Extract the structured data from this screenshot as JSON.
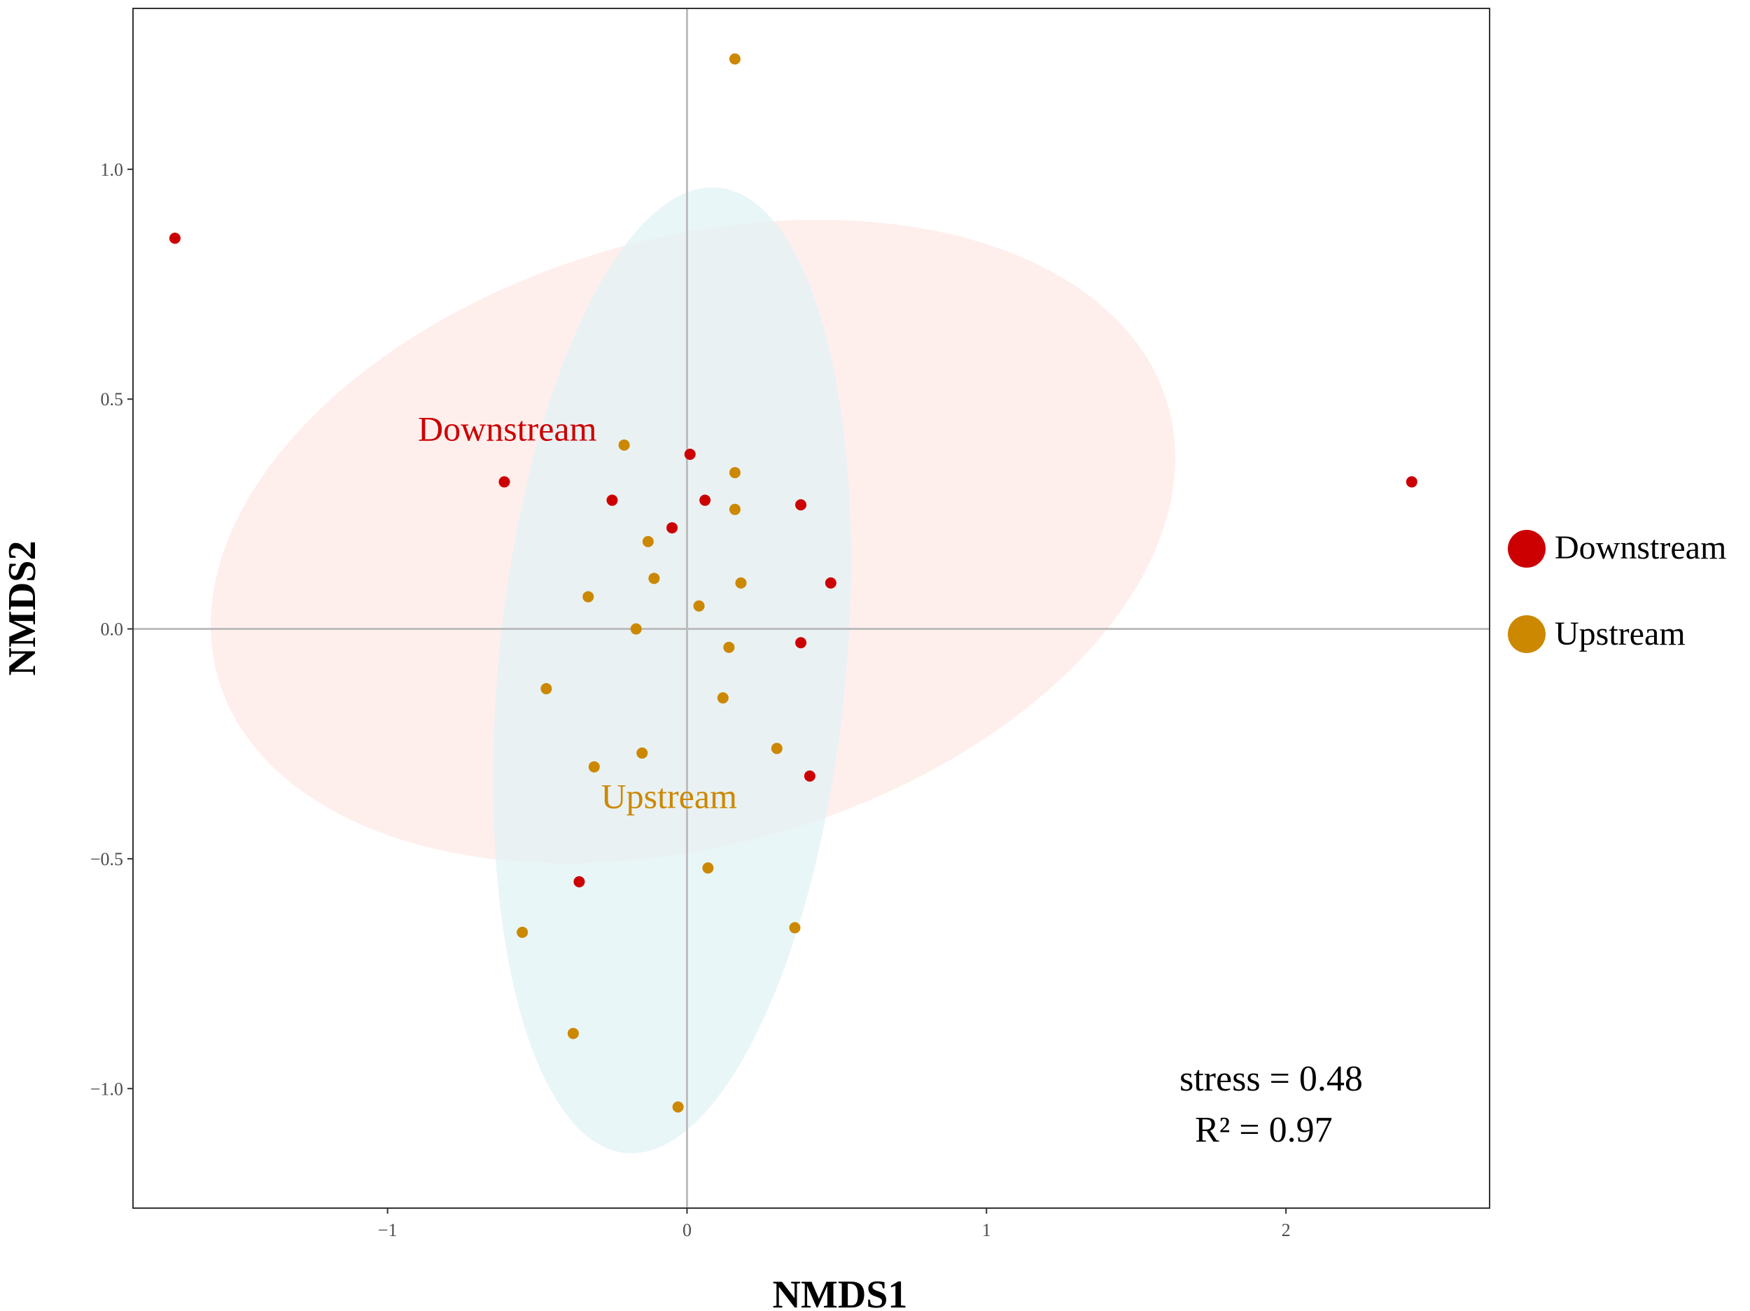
{
  "chart_data": {
    "type": "scatter",
    "title": "",
    "xlabel": "NMDS1",
    "ylabel": "NMDS2",
    "xlim": [
      -1.85,
      2.68
    ],
    "ylim": [
      -1.26,
      1.35
    ],
    "xticks": [
      -1,
      0,
      1,
      2
    ],
    "xtick_labels": [
      "−1",
      "0",
      "1",
      "2"
    ],
    "yticks": [
      -1.0,
      -0.5,
      0.0,
      0.5,
      1.0
    ],
    "ytick_labels": [
      "−1.0",
      "−0.5",
      "0.0",
      "0.5",
      "1.0"
    ],
    "reference_lines": {
      "x": 0,
      "y": 0
    },
    "grid": false,
    "legend": {
      "position": "right",
      "entries": [
        {
          "label": "Downstream",
          "color": "#cc0000"
        },
        {
          "label": "Upstream",
          "color": "#cc8800"
        }
      ]
    },
    "series": [
      {
        "name": "Downstream",
        "color": "#cc0000",
        "ellipse_fill": "#fde8e6",
        "ellipse": {
          "cx": 0.02,
          "cy": 0.19,
          "rx": 1.65,
          "ry": 0.66,
          "angle_deg": -16
        },
        "label": {
          "text": "Downstream",
          "x": -0.6,
          "y": 0.41
        },
        "points": [
          {
            "x": -1.71,
            "y": 0.85
          },
          {
            "x": -0.61,
            "y": 0.32
          },
          {
            "x": 2.42,
            "y": 0.32
          },
          {
            "x": 0.01,
            "y": 0.38
          },
          {
            "x": -0.25,
            "y": 0.28
          },
          {
            "x": 0.06,
            "y": 0.28
          },
          {
            "x": 0.38,
            "y": 0.27
          },
          {
            "x": -0.05,
            "y": 0.22
          },
          {
            "x": 0.48,
            "y": 0.1
          },
          {
            "x": 0.38,
            "y": -0.03
          },
          {
            "x": 0.41,
            "y": -0.32
          },
          {
            "x": -0.36,
            "y": -0.55
          }
        ]
      },
      {
        "name": "Upstream",
        "color": "#cc8800",
        "ellipse_fill": "#dff2f5",
        "ellipse": {
          "cx": -0.05,
          "cy": -0.09,
          "rx": 0.58,
          "ry": 1.055,
          "angle_deg": 5.5
        },
        "label": {
          "text": "Upstream",
          "x": -0.06,
          "y": -0.39
        },
        "points": [
          {
            "x": 0.16,
            "y": 1.24
          },
          {
            "x": -0.21,
            "y": 0.4
          },
          {
            "x": 0.16,
            "y": 0.34
          },
          {
            "x": 0.16,
            "y": 0.26
          },
          {
            "x": -0.13,
            "y": 0.19
          },
          {
            "x": -0.11,
            "y": 0.11
          },
          {
            "x": 0.18,
            "y": 0.1
          },
          {
            "x": -0.33,
            "y": 0.07
          },
          {
            "x": 0.04,
            "y": 0.05
          },
          {
            "x": -0.17,
            "y": 0.0
          },
          {
            "x": 0.14,
            "y": -0.04
          },
          {
            "x": -0.47,
            "y": -0.13
          },
          {
            "x": 0.12,
            "y": -0.15
          },
          {
            "x": 0.3,
            "y": -0.26
          },
          {
            "x": -0.15,
            "y": -0.27
          },
          {
            "x": -0.31,
            "y": -0.3
          },
          {
            "x": 0.07,
            "y": -0.52
          },
          {
            "x": 0.36,
            "y": -0.65
          },
          {
            "x": -0.55,
            "y": -0.66
          },
          {
            "x": -0.38,
            "y": -0.88
          },
          {
            "x": -0.03,
            "y": -1.04
          }
        ]
      }
    ],
    "annotations": [
      {
        "text": "stress = 0.48"
      },
      {
        "text": "R² = 0.97"
      }
    ]
  }
}
